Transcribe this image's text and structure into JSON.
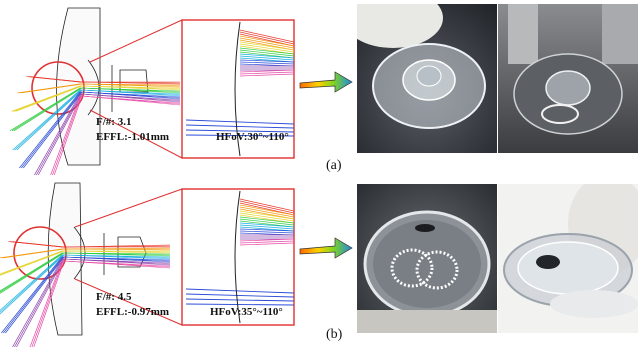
{
  "panels": [
    {
      "id": "a",
      "fnum": "F/#: 3.1",
      "effl": "EFFL:-1.01mm",
      "hfov": "HFoV:30°~110°",
      "caption": "(a)"
    },
    {
      "id": "b",
      "fnum": "F/#: 4.5",
      "effl": "EFFL:-0.97mm",
      "hfov": "HFoV:35°~110°",
      "caption": "(b)"
    }
  ],
  "colors": {
    "zoom_frame": "#e03030",
    "ray_colors": [
      "#e8392b",
      "#f39c12",
      "#e6d430",
      "#2ecc40",
      "#1ab0e0",
      "#2a4bd7",
      "#8e44ad",
      "#e84aa6"
    ],
    "arrow_gradient": [
      "#ff6a00",
      "#ffd200",
      "#7ed321",
      "#1e88e5"
    ]
  },
  "icons": [
    "lens-diagram-icon",
    "arrow-right-icon",
    "lens-photo-icon"
  ]
}
